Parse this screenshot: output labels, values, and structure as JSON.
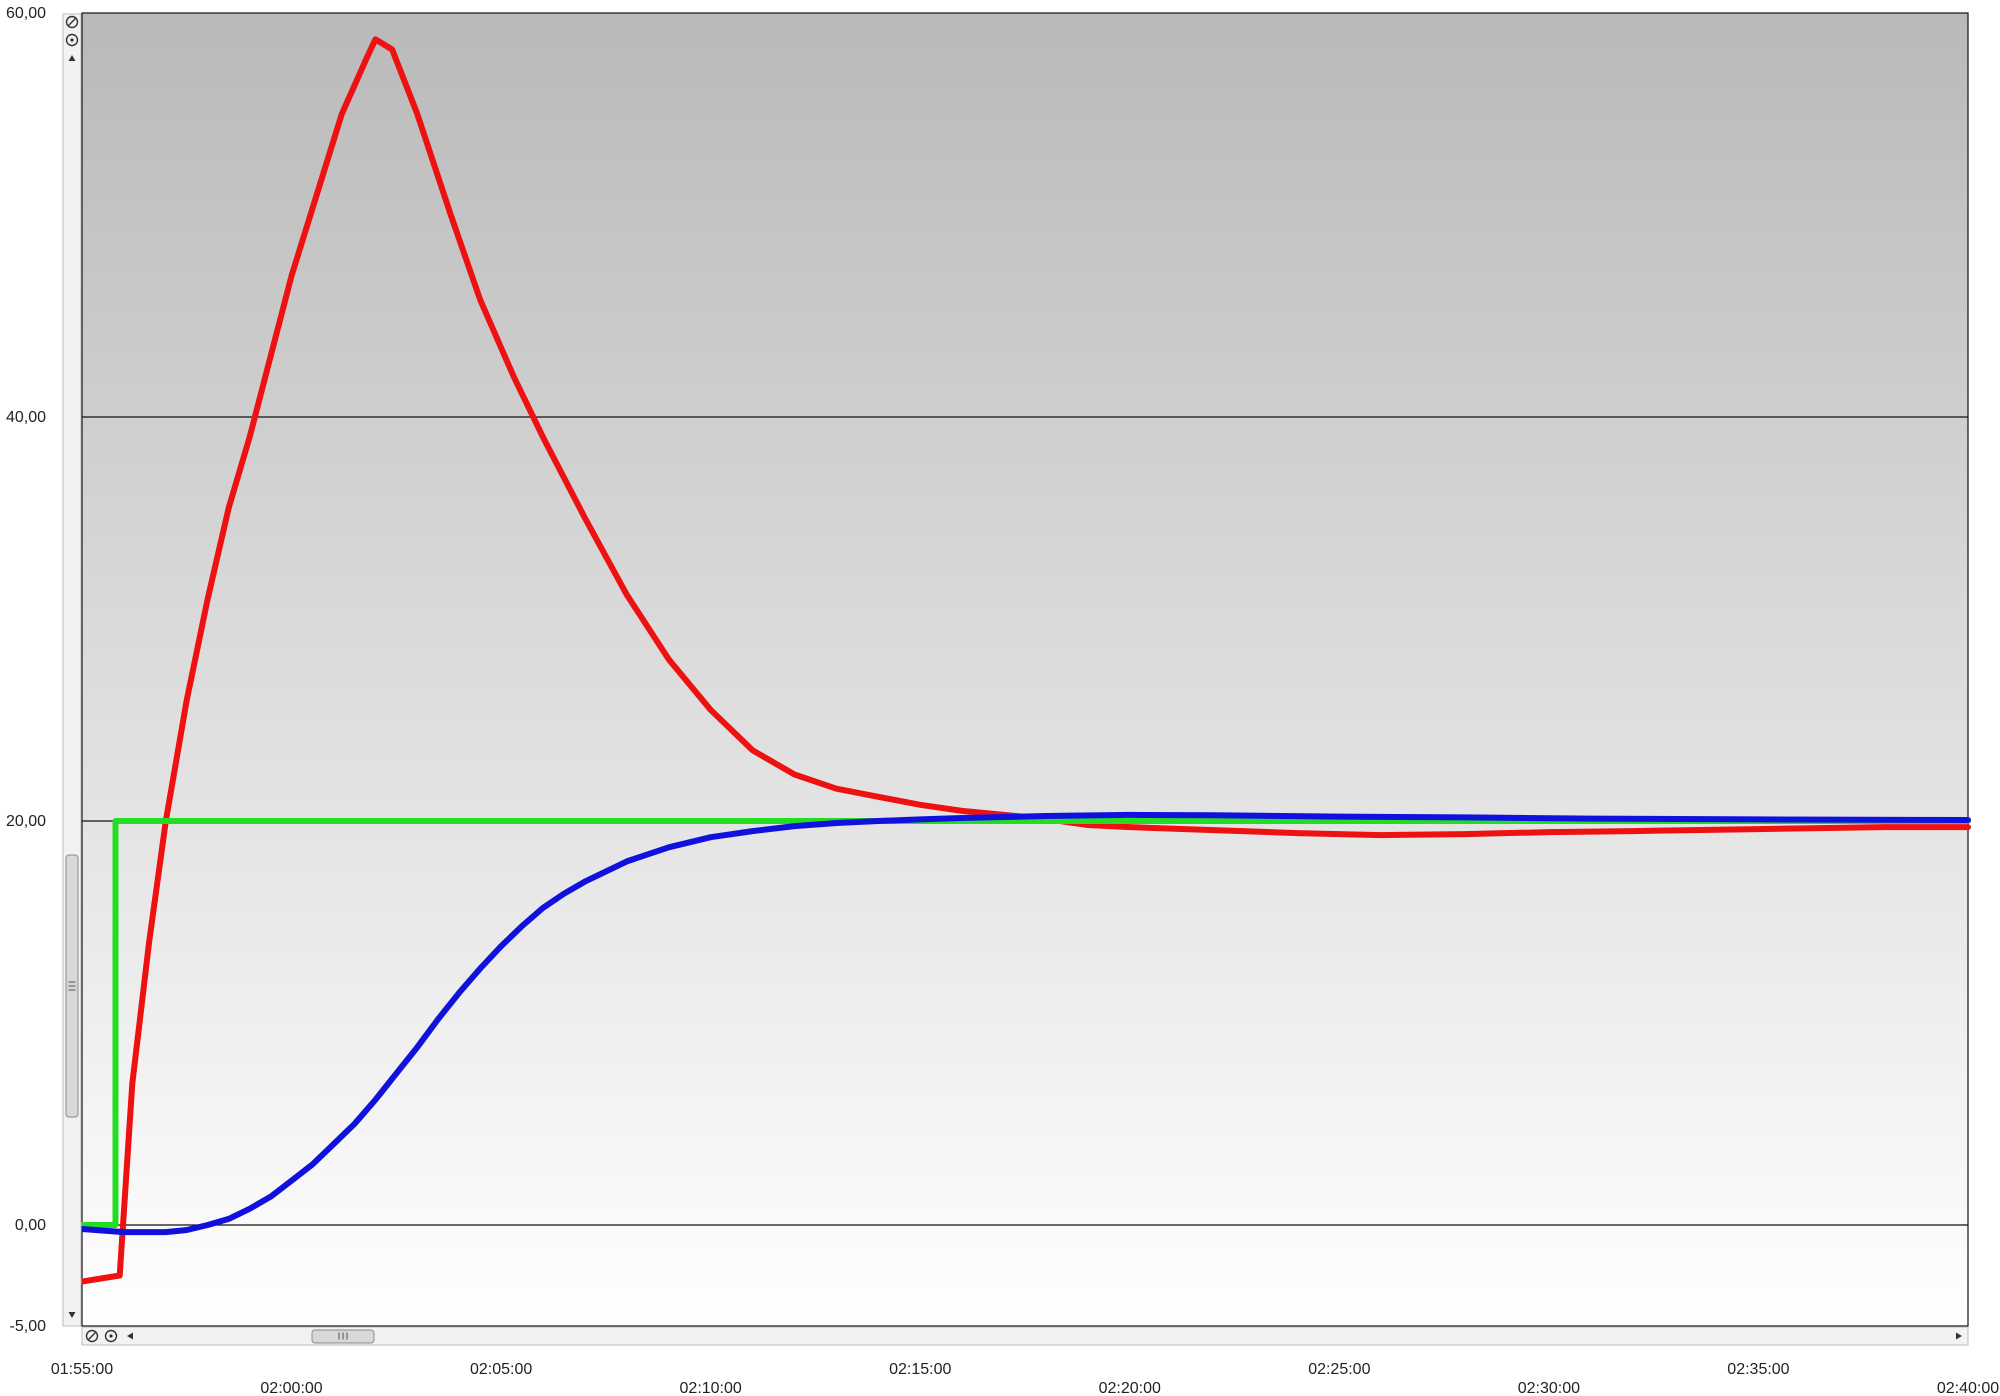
{
  "chart_data": {
    "type": "line",
    "title": "",
    "xlabel": "",
    "ylabel": "",
    "xlim": [
      "01:55:00",
      "02:40:00"
    ],
    "ylim": [
      -5,
      60
    ],
    "y_ticks": [
      "60,00",
      "40,00",
      "20,00",
      "0,00",
      "-5,00"
    ],
    "y_tick_values": [
      60,
      40,
      20,
      0,
      -5
    ],
    "x_ticks": [
      "01:55:00",
      "02:00:00",
      "02:05:00",
      "02:10:00",
      "02:15:00",
      "02:20:00",
      "02:25:00",
      "02:30:00",
      "02:35:00",
      "02:40:00"
    ],
    "x_tick_minutes": [
      0,
      5,
      10,
      15,
      20,
      25,
      30,
      35,
      40,
      45
    ],
    "gridlines_y": [
      40,
      20,
      0
    ],
    "grid": true,
    "legend": "none",
    "background_gradient": [
      "#b9b9b9",
      "#ffffff"
    ],
    "series": [
      {
        "color": "#ee1111",
        "points": [
          [
            "01:55:00",
            -2.8
          ],
          [
            "01:55:54",
            -2.5
          ],
          [
            "01:56:12",
            7
          ],
          [
            "01:56:36",
            14
          ],
          [
            "01:57:00",
            20
          ],
          [
            "01:57:30",
            26
          ],
          [
            "01:58:00",
            31
          ],
          [
            "01:58:30",
            35.5
          ],
          [
            "01:59:00",
            39
          ],
          [
            "01:59:30",
            43
          ],
          [
            "02:00:00",
            47
          ],
          [
            "02:00:36",
            51
          ],
          [
            "02:01:12",
            55
          ],
          [
            "02:01:48",
            57.8
          ],
          [
            "02:02:00",
            58.7
          ],
          [
            "02:02:24",
            58.2
          ],
          [
            "02:03:00",
            55
          ],
          [
            "02:03:48",
            50
          ],
          [
            "02:04:30",
            45.8
          ],
          [
            "02:05:18",
            42
          ],
          [
            "02:06:00",
            39
          ],
          [
            "02:07:00",
            35
          ],
          [
            "02:08:00",
            31.2
          ],
          [
            "02:09:00",
            28
          ],
          [
            "02:10:00",
            25.5
          ],
          [
            "02:11:00",
            23.5
          ],
          [
            "02:12:00",
            22.3
          ],
          [
            "02:13:00",
            21.6
          ],
          [
            "02:14:00",
            21.2
          ],
          [
            "02:15:00",
            20.8
          ],
          [
            "02:16:00",
            20.5
          ],
          [
            "02:17:00",
            20.3
          ],
          [
            "02:18:00",
            20.1
          ],
          [
            "02:19:00",
            19.8
          ],
          [
            "02:20:00",
            19.7
          ],
          [
            "02:22:00",
            19.55
          ],
          [
            "02:24:00",
            19.4
          ],
          [
            "02:26:00",
            19.3
          ],
          [
            "02:28:00",
            19.35
          ],
          [
            "02:30:00",
            19.45
          ],
          [
            "02:32:00",
            19.5
          ],
          [
            "02:35:00",
            19.6
          ],
          [
            "02:38:00",
            19.7
          ],
          [
            "02:40:00",
            19.7
          ]
        ]
      },
      {
        "color": "#22dd22",
        "points": [
          [
            "01:55:00",
            0
          ],
          [
            "01:55:48",
            0
          ],
          [
            "01:55:48",
            20
          ],
          [
            "02:40:00",
            20
          ]
        ]
      },
      {
        "color": "#1111dd",
        "points": [
          [
            "01:55:00",
            -0.2
          ],
          [
            "01:56:00",
            -0.35
          ],
          [
            "01:57:00",
            -0.35
          ],
          [
            "01:57:30",
            -0.25
          ],
          [
            "01:58:00",
            0
          ],
          [
            "01:58:30",
            0.3
          ],
          [
            "01:59:00",
            0.8
          ],
          [
            "01:59:30",
            1.4
          ],
          [
            "02:00:00",
            2.2
          ],
          [
            "02:00:30",
            3
          ],
          [
            "02:01:00",
            4
          ],
          [
            "02:01:30",
            5
          ],
          [
            "02:02:00",
            6.2
          ],
          [
            "02:02:30",
            7.5
          ],
          [
            "02:03:00",
            8.8
          ],
          [
            "02:03:30",
            10.2
          ],
          [
            "02:04:00",
            11.5
          ],
          [
            "02:04:30",
            12.7
          ],
          [
            "02:05:00",
            13.8
          ],
          [
            "02:05:30",
            14.8
          ],
          [
            "02:06:00",
            15.7
          ],
          [
            "02:06:30",
            16.4
          ],
          [
            "02:07:00",
            17
          ],
          [
            "02:08:00",
            18
          ],
          [
            "02:09:00",
            18.7
          ],
          [
            "02:10:00",
            19.2
          ],
          [
            "02:11:00",
            19.5
          ],
          [
            "02:12:00",
            19.75
          ],
          [
            "02:13:00",
            19.9
          ],
          [
            "02:14:00",
            20
          ],
          [
            "02:15:00",
            20.08
          ],
          [
            "02:16:00",
            20.15
          ],
          [
            "02:18:00",
            20.25
          ],
          [
            "02:20:00",
            20.3
          ],
          [
            "02:22:00",
            20.28
          ],
          [
            "02:25:00",
            20.22
          ],
          [
            "02:28:00",
            20.18
          ],
          [
            "02:31:00",
            20.12
          ],
          [
            "02:35:00",
            20.08
          ],
          [
            "02:40:00",
            20.05
          ]
        ]
      }
    ]
  },
  "controls": {
    "zoom_reset_icon": "zoom-reset-icon",
    "zoom_refresh_icon": "zoom-refresh-icon",
    "scroll_up_icon": "scroll-up-arrow-icon",
    "scroll_down_icon": "scroll-down-arrow-icon",
    "scroll_left_icon": "scroll-left-arrow-icon",
    "scroll_right_icon": "scroll-right-arrow-icon",
    "thumb_grip_icon": "scroll-thumb-grip-icon"
  }
}
